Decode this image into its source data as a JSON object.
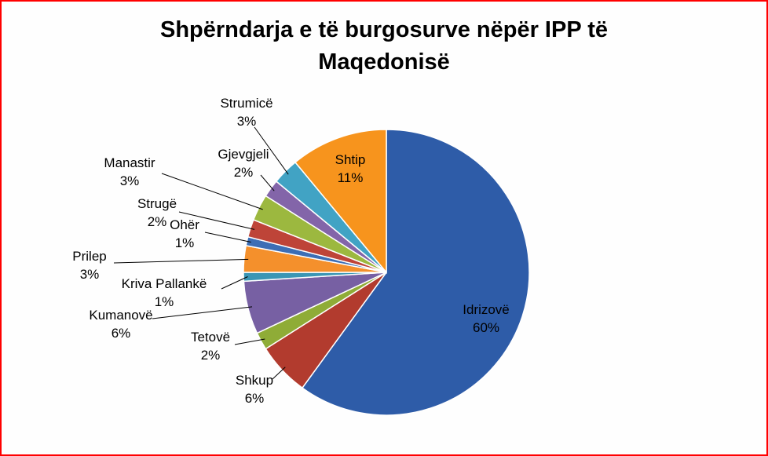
{
  "title_lines": [
    "Shpërndarja e të burgosurve nëpër IPP të",
    "Maqedonisë"
  ],
  "chart_data": {
    "type": "pie",
    "title": "Shpërndarja e të burgosurve nëpër IPP të Maqedonisë",
    "legend": "none",
    "direction": "clockwise",
    "start_angle_deg": 0,
    "label_format": "name + percent",
    "slices": [
      {
        "label": "Idrizovë",
        "value": 60,
        "percent_label": "60%",
        "color": "#2e5ca8",
        "label_position": "inside"
      },
      {
        "label": "Shkup",
        "value": 6,
        "percent_label": "6%",
        "color": "#b23b2e",
        "label_position": "outside"
      },
      {
        "label": "Tetovë",
        "value": 2,
        "percent_label": "2%",
        "color": "#8fac37",
        "label_position": "outside"
      },
      {
        "label": "Kumanovë",
        "value": 6,
        "percent_label": "6%",
        "color": "#7760a3",
        "label_position": "outside"
      },
      {
        "label": "Kriva Pallankë",
        "value": 1,
        "percent_label": "1%",
        "color": "#3a96b5",
        "label_position": "outside"
      },
      {
        "label": "Prilep",
        "value": 3,
        "percent_label": "3%",
        "color": "#f4902c",
        "label_position": "outside"
      },
      {
        "label": "Ohër",
        "value": 1,
        "percent_label": "1%",
        "color": "#3c6eb5",
        "label_position": "outside"
      },
      {
        "label": "Strugë",
        "value": 2,
        "percent_label": "2%",
        "color": "#be4438",
        "label_position": "outside"
      },
      {
        "label": "Manastir",
        "value": 3,
        "percent_label": "3%",
        "color": "#9cb83f",
        "label_position": "outside"
      },
      {
        "label": "Gjevgjeli",
        "value": 2,
        "percent_label": "2%",
        "color": "#8365a9",
        "label_position": "outside"
      },
      {
        "label": "Strumicë",
        "value": 3,
        "percent_label": "3%",
        "color": "#41a3c4",
        "label_position": "outside"
      },
      {
        "label": "Shtip",
        "value": 11,
        "percent_label": "11%",
        "color": "#f7941d",
        "label_position": "inside"
      }
    ]
  }
}
